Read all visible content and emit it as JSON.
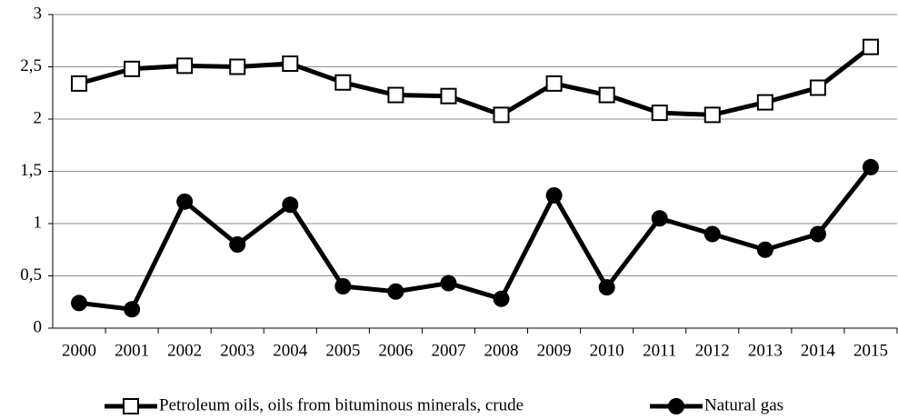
{
  "chart_data": {
    "type": "line",
    "categories": [
      "2000",
      "2001",
      "2002",
      "2003",
      "2004",
      "2005",
      "2006",
      "2007",
      "2008",
      "2009",
      "2010",
      "2011",
      "2012",
      "2013",
      "2014",
      "2015"
    ],
    "series": [
      {
        "name": "Petroleum oils, oils from bituminous minerals, crude",
        "color": "#000000",
        "marker": "square",
        "values": [
          2.34,
          2.48,
          2.51,
          2.5,
          2.53,
          2.35,
          2.23,
          2.22,
          2.04,
          2.34,
          2.23,
          2.06,
          2.04,
          2.16,
          2.3,
          2.69
        ]
      },
      {
        "name": "Natural gas",
        "color": "#000000",
        "marker": "circle",
        "values": [
          0.24,
          0.18,
          1.21,
          0.8,
          1.18,
          0.4,
          0.35,
          0.43,
          0.28,
          1.27,
          0.39,
          1.05,
          0.9,
          0.75,
          0.9,
          1.54
        ]
      }
    ],
    "ylim": [
      0,
      3
    ],
    "yticks": [
      0,
      {
        "value": 0.5,
        "label": "0,5"
      },
      1,
      {
        "value": 1.5,
        "label": "1,5"
      },
      2,
      {
        "value": 2.5,
        "label": "2,5"
      },
      3
    ],
    "grid": true,
    "legend": "bottom"
  }
}
